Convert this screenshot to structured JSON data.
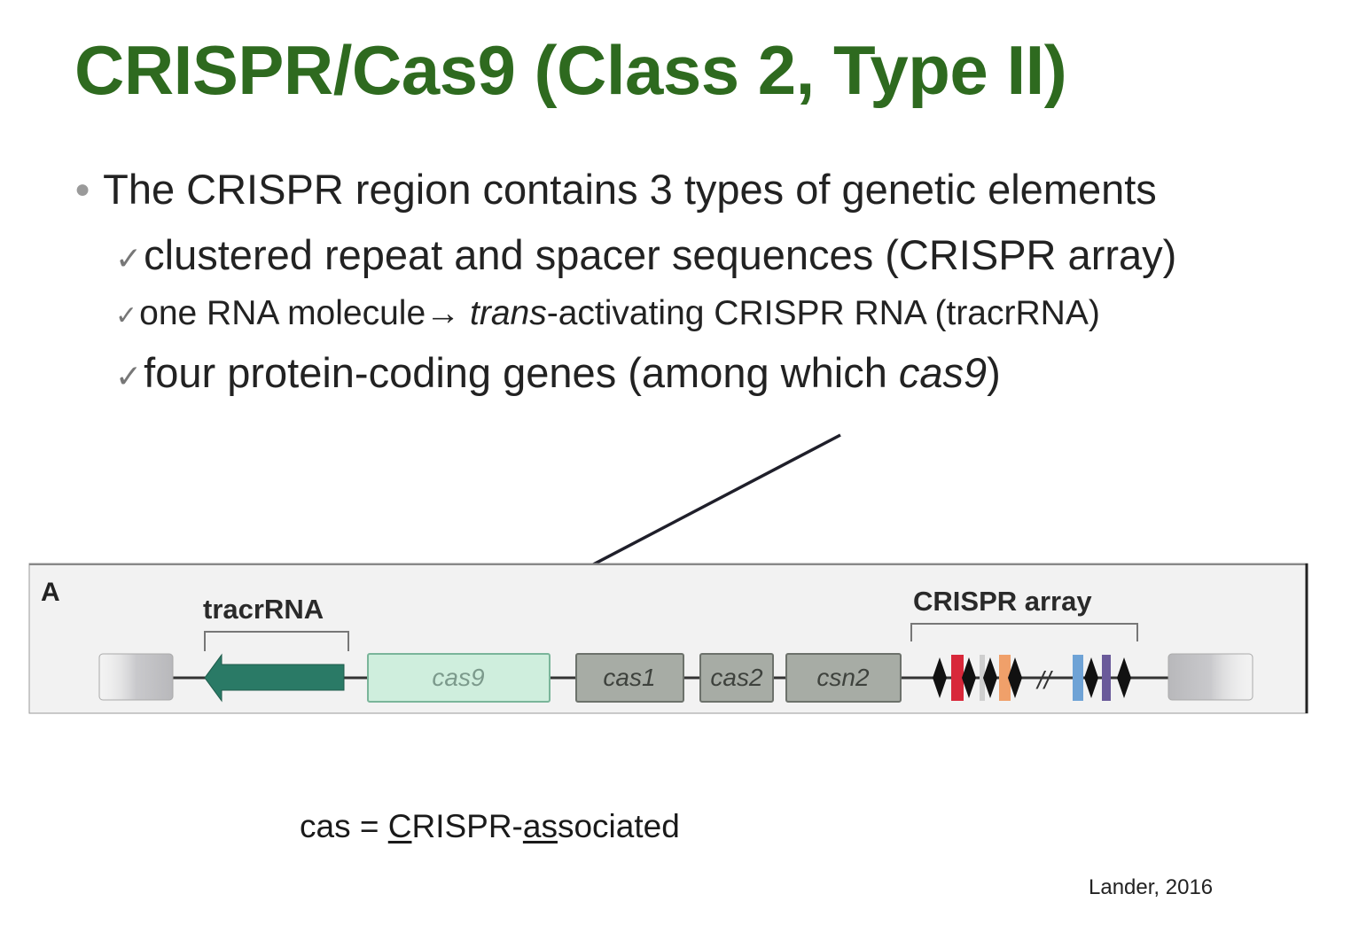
{
  "title": "CRISPR/Cas9 (Class 2, Type II)",
  "bullet": {
    "main": "The CRISPR region contains 3 types of genetic elements",
    "items": [
      {
        "check": "✓",
        "text": "clustered repeat and spacer sequences (CRISPR array)"
      },
      {
        "check": "✓",
        "text_a": "one RNA molecule",
        "arrow": "→ ",
        "italic": "trans",
        "text_b": "-activating CRISPR RNA (tracrRNA)"
      },
      {
        "check": "✓",
        "text_a": "four protein-coding genes (among which ",
        "italic": "cas9",
        "text_b": ")"
      }
    ]
  },
  "figure": {
    "panel_label": "A",
    "tracrrna_label": "tracrRNA",
    "crispr_array_label": "CRISPR array",
    "genes": {
      "cas9": "cas9",
      "cas1": "cas1",
      "cas2": "cas2",
      "csn2": "csn2"
    },
    "break_mark": "//",
    "colors": {
      "tracr": "#2a7a66",
      "cas9_fill": "#cfeedd",
      "gene_fill": "#a7aca5",
      "spacer_red": "#d8283a",
      "spacer_orange": "#f0a06a",
      "spacer_blue": "#6fa3d6",
      "spacer_purple": "#6a5a9a"
    }
  },
  "footnote": {
    "prefix": "cas = ",
    "c": "C",
    "mid": "RISPR-",
    "as": "as",
    "suffix": "sociated"
  },
  "credit": "Lander, 2016"
}
